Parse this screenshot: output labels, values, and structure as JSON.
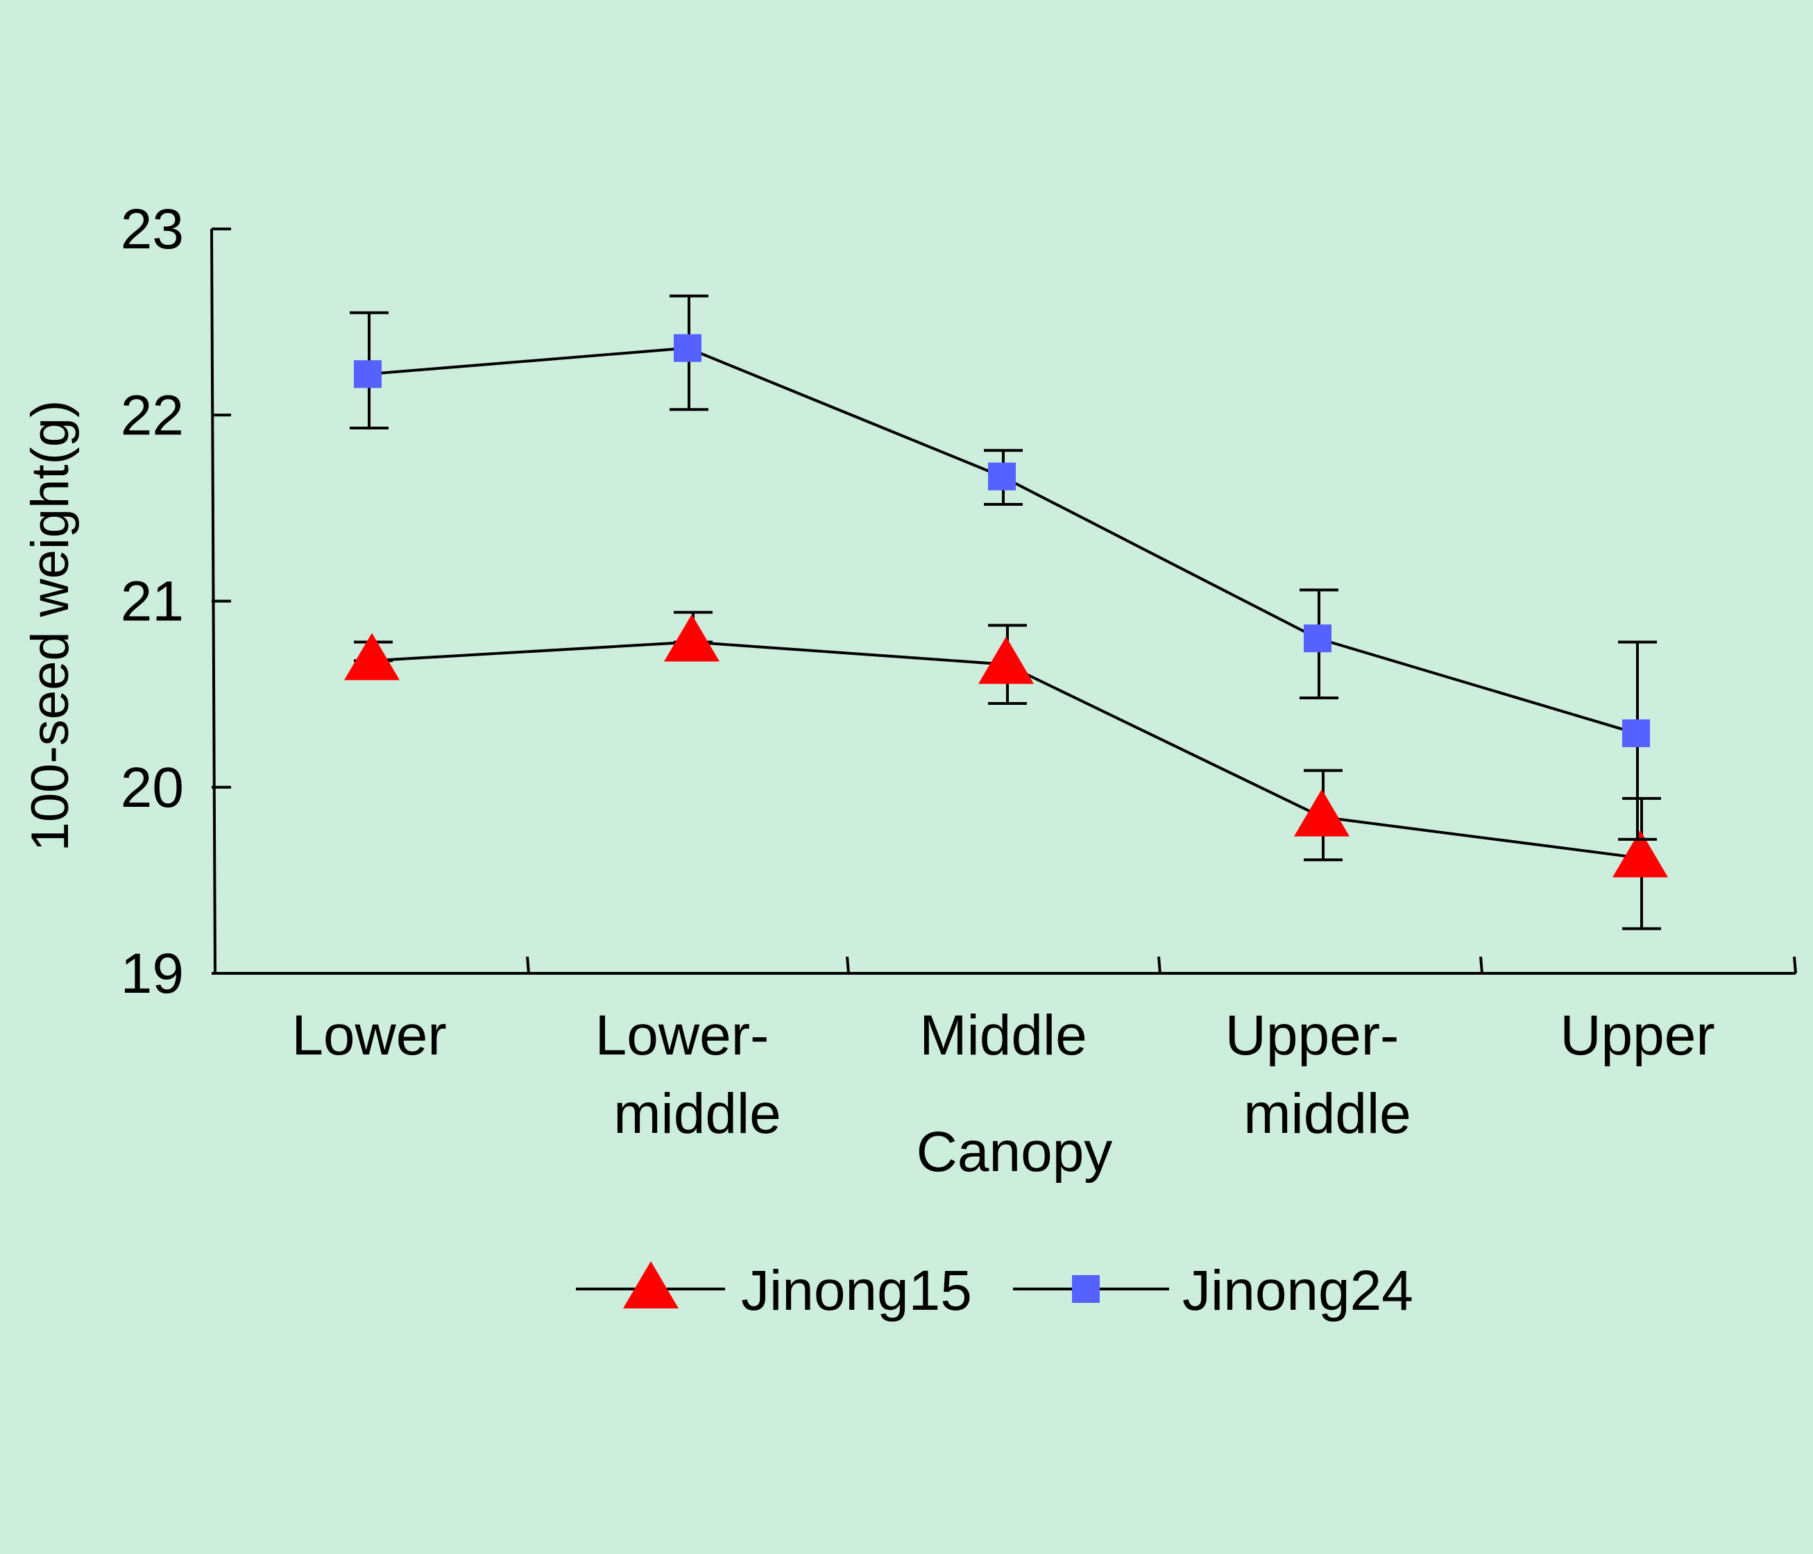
{
  "colors": {
    "background": "#cdeddd",
    "axis": "#000000",
    "line": "#000000"
  },
  "chart_data": {
    "type": "line",
    "xlabel": "Canopy",
    "ylabel": "100-seed weight(g)",
    "ylim": [
      19,
      23
    ],
    "yticks": [
      19,
      20,
      21,
      22,
      23
    ],
    "categories": [
      [
        "Lower"
      ],
      [
        "Lower-",
        "middle"
      ],
      [
        "Middle"
      ],
      [
        "Upper-",
        "middle"
      ],
      [
        "Upper"
      ]
    ],
    "legend_position": "bottom",
    "grid": false,
    "series": [
      {
        "name": "Jinong15",
        "marker": "triangle",
        "color": "#ff0000",
        "values": [
          20.68,
          20.78,
          20.66,
          19.84,
          19.62
        ],
        "error_upper": [
          20.78,
          20.94,
          20.87,
          20.09,
          19.94
        ],
        "error_lower": [
          20.68,
          20.78,
          20.45,
          19.61,
          19.24
        ]
      },
      {
        "name": "Jinong24",
        "marker": "square",
        "color": "#5562ff",
        "values": [
          22.22,
          22.36,
          21.67,
          20.8,
          20.29
        ],
        "error_upper": [
          22.55,
          22.64,
          21.81,
          21.06,
          20.78
        ],
        "error_lower": [
          21.93,
          22.03,
          21.52,
          20.48,
          19.72
        ]
      }
    ]
  }
}
